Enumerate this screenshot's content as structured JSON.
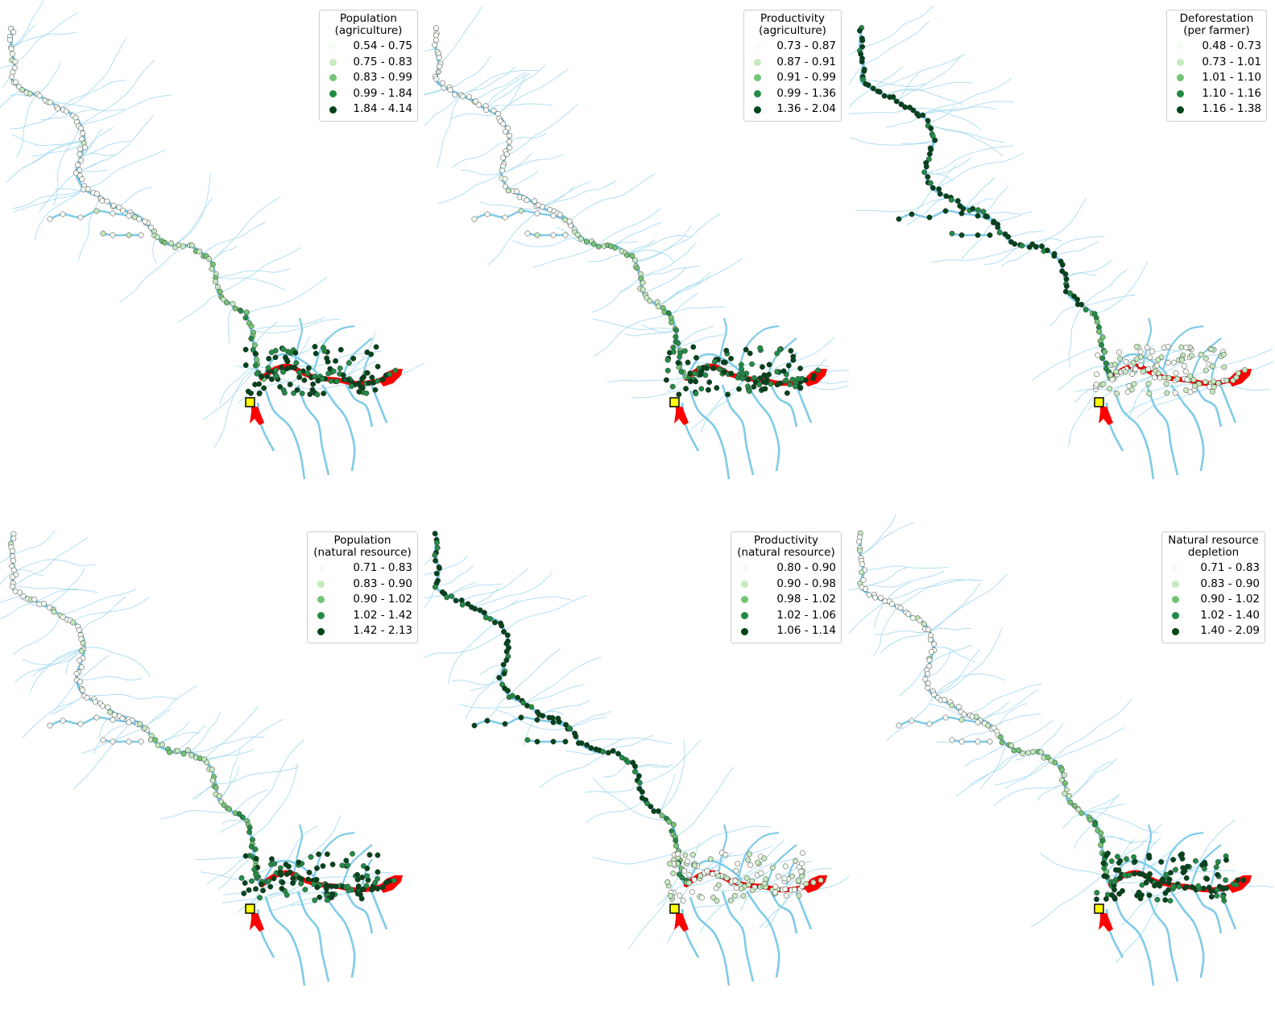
{
  "colors": {
    "river": "#7fcbe8",
    "river_thin": "#a9dcf0",
    "mainstem": "#ff0000",
    "marker": "#ffff00",
    "classes": [
      "#f7fcf5",
      "#c7e9c0",
      "#74c476",
      "#238b45",
      "#00441b"
    ]
  },
  "icons": {
    "marker": "yellow-square-marker-icon",
    "settlement": "circle-settlement-icon"
  },
  "panels": [
    {
      "id": "population-agriculture",
      "legend": {
        "title_line1": "Population",
        "title_line2": "(agriculture)",
        "classes": [
          "0.54 - 0.75",
          "0.75 - 0.83",
          "0.83 - 0.99",
          "0.99 - 1.84",
          "1.84 - 4.14"
        ]
      },
      "pattern": "upstream-light"
    },
    {
      "id": "productivity-agriculture",
      "legend": {
        "title_line1": "Productivity",
        "title_line2": "(agriculture)",
        "classes": [
          "0.73 - 0.87",
          "0.87 - 0.91",
          "0.91 - 0.99",
          "0.99 - 1.36",
          "1.36 - 2.04"
        ]
      },
      "pattern": "upstream-light"
    },
    {
      "id": "deforestation-per-farmer",
      "legend": {
        "title_line1": "Deforestation",
        "title_line2": "(per farmer)",
        "classes": [
          "0.48 - 0.73",
          "0.73 - 1.01",
          "1.01 - 1.10",
          "1.10 - 1.16",
          "1.16 - 1.38"
        ]
      },
      "pattern": "upstream-dark"
    },
    {
      "id": "population-natural-resource",
      "legend": {
        "title_line1": "Population",
        "title_line2": "(natural resource)",
        "classes": [
          "0.71 - 0.83",
          "0.83 - 0.90",
          "0.90 - 1.02",
          "1.02 - 1.42",
          "1.42 - 2.13"
        ]
      },
      "pattern": "upstream-light"
    },
    {
      "id": "productivity-natural-resource",
      "legend": {
        "title_line1": "Productivity",
        "title_line2": "(natural resource)",
        "classes": [
          "0.80 - 0.90",
          "0.90 - 0.98",
          "0.98 - 1.02",
          "1.02 - 1.06",
          "1.06 - 1.14"
        ]
      },
      "pattern": "upstream-dark"
    },
    {
      "id": "natural-resource-depletion",
      "legend": {
        "title_line1": "Natural resource",
        "title_line2": "depletion",
        "classes": [
          "0.71 - 0.83",
          "0.83 - 0.90",
          "0.90 - 1.02",
          "1.02 - 1.40",
          "1.40 - 2.09"
        ]
      },
      "pattern": "upstream-light"
    }
  ]
}
